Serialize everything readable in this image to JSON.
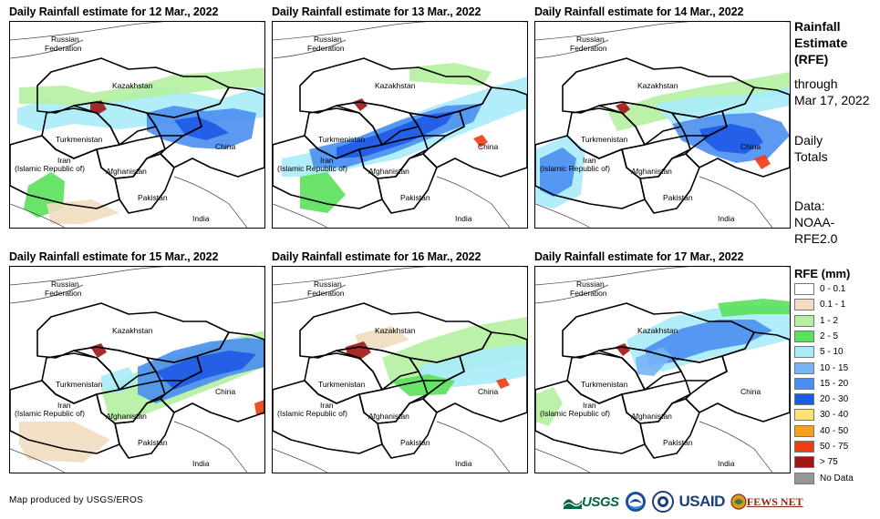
{
  "panels": [
    {
      "title": "Daily Rainfall estimate for 12 Mar., 2022"
    },
    {
      "title": "Daily Rainfall estimate for 13 Mar., 2022"
    },
    {
      "title": "Daily Rainfall estimate for 14 Mar., 2022"
    },
    {
      "title": "Daily Rainfall estimate for 15 Mar., 2022"
    },
    {
      "title": "Daily Rainfall estimate for 16 Mar., 2022"
    },
    {
      "title": "Daily Rainfall estimate for 17 Mar., 2022"
    }
  ],
  "map_labels": {
    "russia_1": "Russian",
    "russia_2": "Federation",
    "kazakhstan": "Kazakhstan",
    "turkmenistan": "Turkmenistan",
    "iran_1": "Iran",
    "iran_2": "(Islamic Republic of)",
    "afghanistan": "Afghanistan",
    "pakistan": "Pakistan",
    "india": "India",
    "china": "China"
  },
  "side": {
    "heading_1": "Rainfall",
    "heading_2": "Estimate",
    "heading_3": "(RFE)",
    "through_1": "through",
    "through_2": "Mar 17, 2022",
    "totals_1": "Daily",
    "totals_2": "Totals",
    "data_1": "Data:",
    "data_2": "NOAA-",
    "data_3": "RFE2.0"
  },
  "legend": {
    "title": "RFE (mm)",
    "items": [
      {
        "label": "0 - 0.1",
        "color": "#ffffff"
      },
      {
        "label": "0.1 - 1",
        "color": "#f0dcc0"
      },
      {
        "label": "1 - 2",
        "color": "#b4f0a0"
      },
      {
        "label": "2 - 5",
        "color": "#5ae05a"
      },
      {
        "label": "5 - 10",
        "color": "#a8ecf8"
      },
      {
        "label": "10 - 15",
        "color": "#78b4f4"
      },
      {
        "label": "15 - 20",
        "color": "#4a8ef0"
      },
      {
        "label": "20 - 30",
        "color": "#1e5ae6"
      },
      {
        "label": "30 - 40",
        "color": "#fae178"
      },
      {
        "label": "40 - 50",
        "color": "#f5a01e"
      },
      {
        "label": "50 - 75",
        "color": "#f03c14"
      },
      {
        "label": "> 75",
        "color": "#a01414"
      },
      {
        "label": "No Data",
        "color": "#969696"
      }
    ]
  },
  "credit": "Map produced by USGS/EROS",
  "logos": {
    "usgs": "USGS",
    "usaid": "USAID",
    "fewsnet": "FEWS NET"
  }
}
